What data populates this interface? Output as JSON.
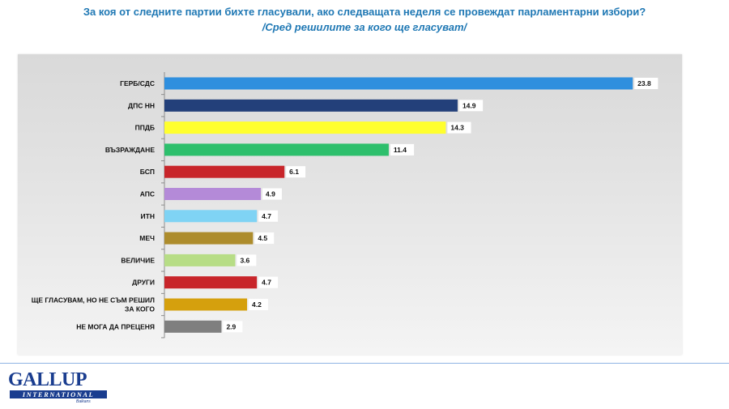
{
  "header": {
    "title": "За коя от следните партии бихте  гласували,  ако следващата неделя се провеждат парламентарни избори?",
    "subtitle": "/Сред решилите за кого ще гласуват/"
  },
  "chart_data": {
    "type": "bar",
    "orientation": "horizontal",
    "categories": [
      "ГЕРБ/СДС",
      "ДПС НН",
      "ППДБ",
      "ВЪЗРАЖДАНЕ",
      "БСП",
      "АПС",
      "ИТН",
      "МЕЧ",
      "ВЕЛИЧИЕ",
      "ДРУГИ",
      [
        "ЩЕ ГЛАСУВАМ, НО НЕ СЪМ РЕШИЛ",
        "ЗА КОГО"
      ],
      "НЕ МОГА ДА ПРЕЦЕНЯ"
    ],
    "values": [
      23.8,
      14.9,
      14.3,
      11.4,
      6.1,
      4.9,
      4.7,
      4.5,
      3.6,
      4.7,
      4.2,
      2.9
    ],
    "value_labels": [
      "23.8",
      "14.9",
      "14.3",
      "11.4",
      "6.1",
      "4.9",
      "4.7",
      "4.5",
      "3.6",
      "4.7",
      "4.2",
      "2.9"
    ],
    "colors": [
      "#2f8fde",
      "#23407a",
      "#ffff2e",
      "#2dbf6c",
      "#c8252a",
      "#b48ad8",
      "#7fd3f4",
      "#ad8c2c",
      "#b7dd86",
      "#c8252a",
      "#d5a00d",
      "#7f7f7f"
    ],
    "xlim": [
      0,
      24
    ],
    "grid": false,
    "legend": "none",
    "title": "",
    "xlabel": "",
    "ylabel": ""
  },
  "logo": {
    "word": "GALLUP",
    "band": "INTERNATIONAL",
    "sub": "Balkans"
  }
}
